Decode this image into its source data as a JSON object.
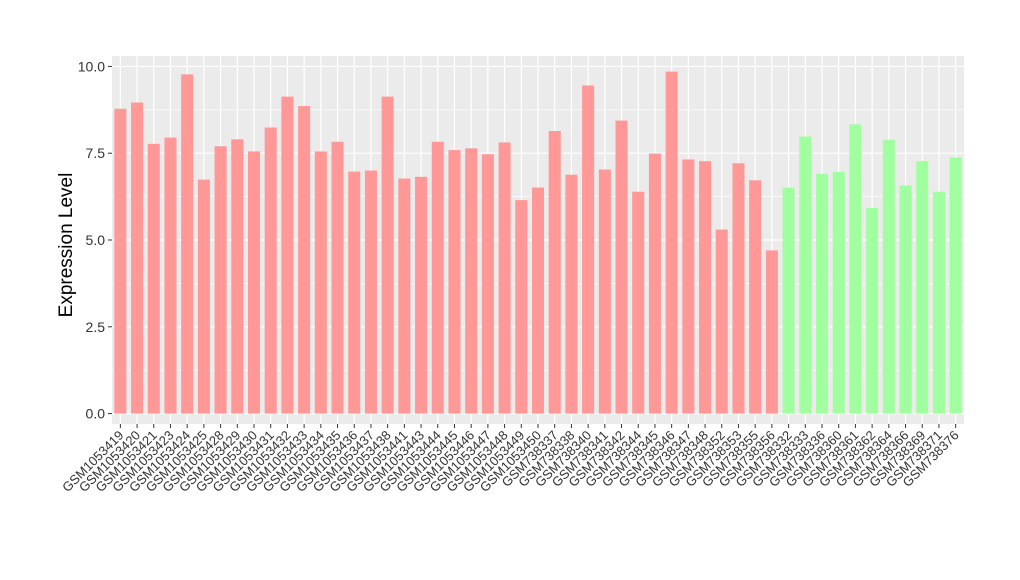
{
  "chart_data": {
    "type": "bar",
    "ylabel": "Expression Level",
    "xlabel": "",
    "title": "",
    "ylim": [
      -0.3,
      10.3
    ],
    "yticks": [
      0.0,
      2.5,
      5.0,
      7.5,
      10.0
    ],
    "ytick_labels": [
      "0.0",
      "2.5",
      "5.0",
      "7.5",
      "10.0"
    ],
    "grid": true,
    "panel_background": "#ebebeb",
    "grid_color": "#ffffff",
    "group_colors": {
      "group1": "#ff9896",
      "group2": "#a0ff9e"
    },
    "categories": [
      "GSM1053419",
      "GSM1053420",
      "GSM1053421",
      "GSM1053423",
      "GSM1053424",
      "GSM1053425",
      "GSM1053428",
      "GSM1053429",
      "GSM1053430",
      "GSM1053431",
      "GSM1053432",
      "GSM1053433",
      "GSM1053434",
      "GSM1053435",
      "GSM1053436",
      "GSM1053437",
      "GSM1053438",
      "GSM1053441",
      "GSM1053443",
      "GSM1053444",
      "GSM1053445",
      "GSM1053446",
      "GSM1053447",
      "GSM1053448",
      "GSM1053449",
      "GSM1053450",
      "GSM738337",
      "GSM738338",
      "GSM738340",
      "GSM738341",
      "GSM738342",
      "GSM738344",
      "GSM738345",
      "GSM738346",
      "GSM738347",
      "GSM738348",
      "GSM738352",
      "GSM738353",
      "GSM738355",
      "GSM738356",
      "GSM738332",
      "GSM738333",
      "GSM738336",
      "GSM738360",
      "GSM738361",
      "GSM738362",
      "GSM738364",
      "GSM738366",
      "GSM738369",
      "GSM738371",
      "GSM738376"
    ],
    "values": [
      8.78,
      8.96,
      7.77,
      7.95,
      9.77,
      6.74,
      7.7,
      7.9,
      7.55,
      8.24,
      9.13,
      8.86,
      7.55,
      7.83,
      6.97,
      7.0,
      9.13,
      6.77,
      6.82,
      7.83,
      7.59,
      7.64,
      7.47,
      7.81,
      6.15,
      6.51,
      8.14,
      6.88,
      9.45,
      7.03,
      8.44,
      6.39,
      7.49,
      9.85,
      7.32,
      7.27,
      5.3,
      7.21,
      6.72,
      4.7,
      6.51,
      7.98,
      6.91,
      6.96,
      8.33,
      5.92,
      7.89,
      6.57,
      7.27,
      6.39,
      7.38
    ],
    "groups": [
      "group1",
      "group1",
      "group1",
      "group1",
      "group1",
      "group1",
      "group1",
      "group1",
      "group1",
      "group1",
      "group1",
      "group1",
      "group1",
      "group1",
      "group1",
      "group1",
      "group1",
      "group1",
      "group1",
      "group1",
      "group1",
      "group1",
      "group1",
      "group1",
      "group1",
      "group1",
      "group1",
      "group1",
      "group1",
      "group1",
      "group1",
      "group1",
      "group1",
      "group1",
      "group1",
      "group1",
      "group1",
      "group1",
      "group1",
      "group1",
      "group2",
      "group2",
      "group2",
      "group2",
      "group2",
      "group2",
      "group2",
      "group2",
      "group2",
      "group2",
      "group2"
    ]
  }
}
